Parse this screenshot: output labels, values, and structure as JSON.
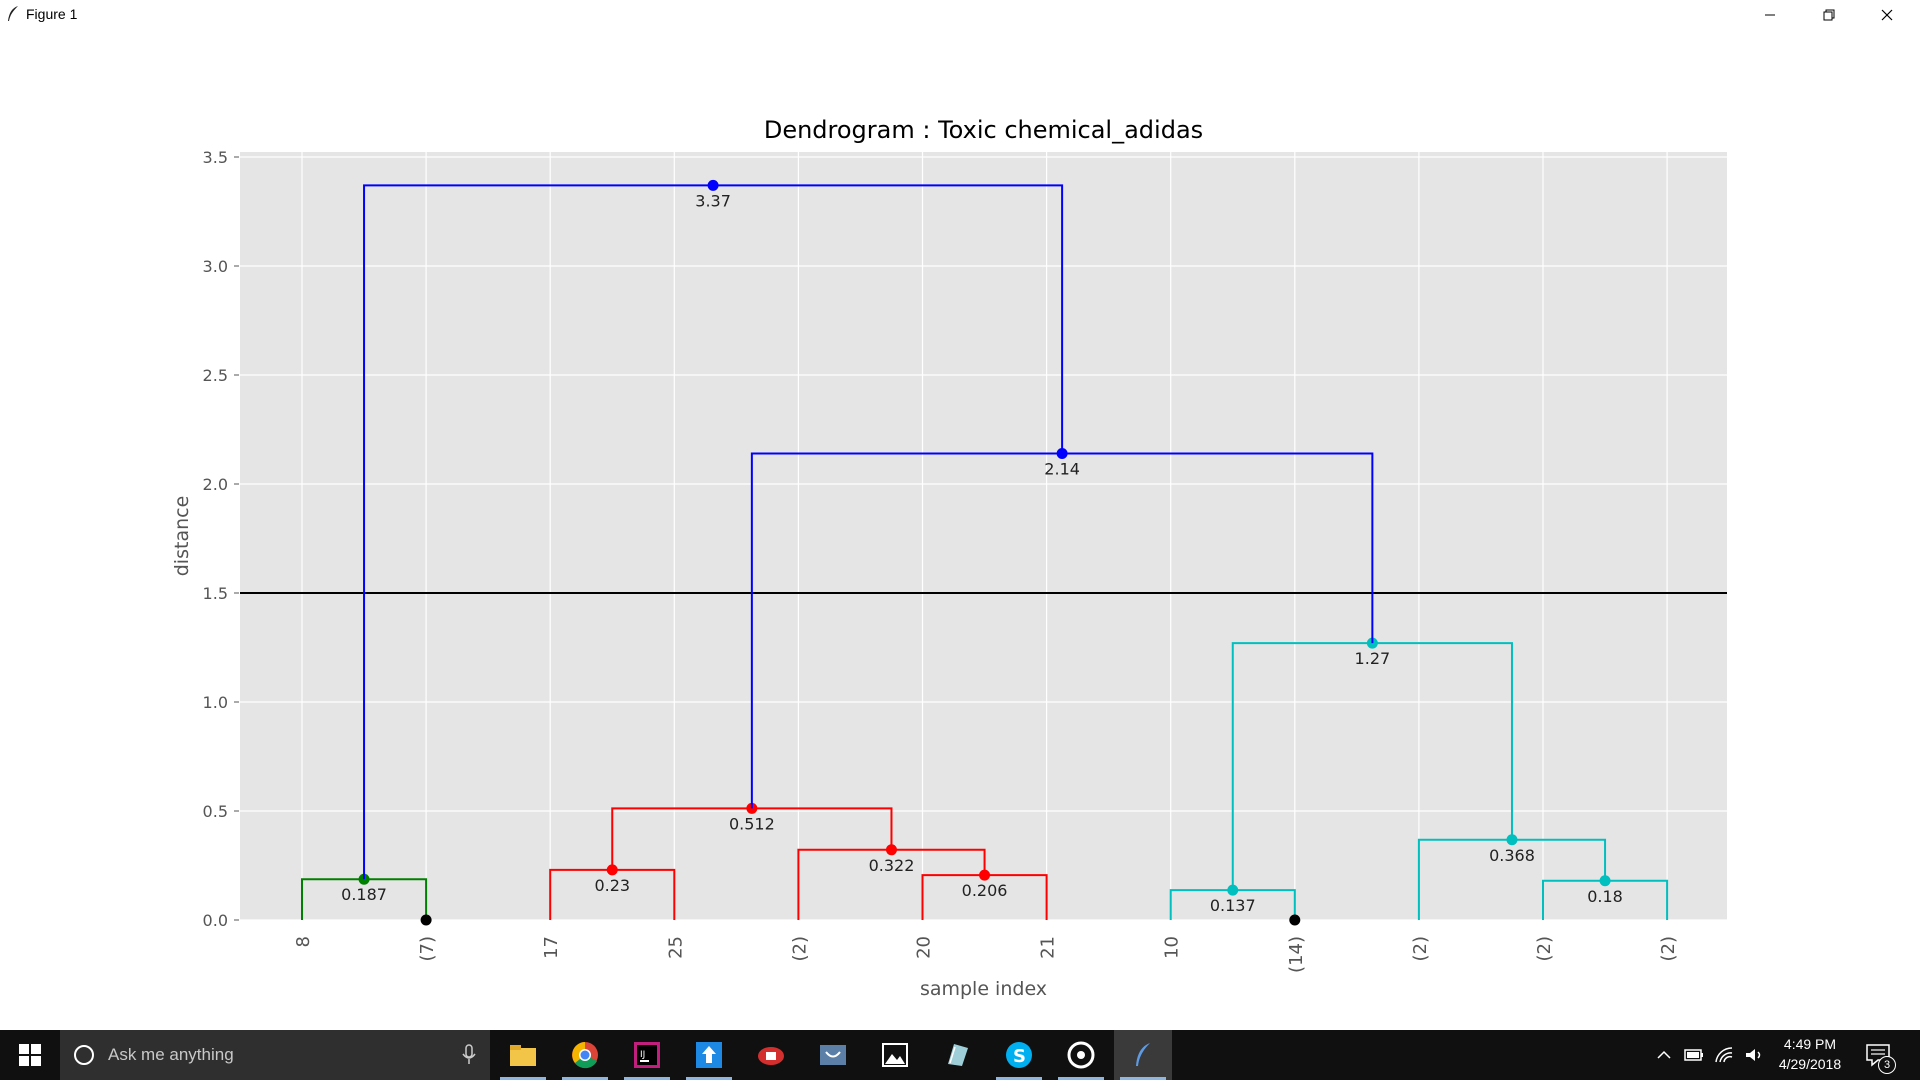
{
  "window": {
    "title": "Figure 1"
  },
  "chart_data": {
    "type": "dendrogram",
    "title": "Dendrogram : Toxic chemical_adidas",
    "xlabel": "sample index",
    "ylabel": "distance",
    "ylim": [
      0,
      3.5
    ],
    "yticks": [
      "0.0",
      "0.5",
      "1.0",
      "1.5",
      "2.0",
      "2.5",
      "3.0",
      "3.5"
    ],
    "ytick_values": [
      0,
      0.5,
      1.0,
      1.5,
      2.0,
      2.5,
      3.0,
      3.5
    ],
    "leaf_labels": [
      "8",
      "(7)",
      "17",
      "25",
      "(2)",
      "20",
      "21",
      "10",
      "(14)",
      "(2)",
      "(2)",
      "(2)"
    ],
    "cut_line": 1.5,
    "grid": true,
    "links": [
      {
        "left": 0,
        "right": 1,
        "left_h": 0,
        "right_h": 0,
        "height": 0.187,
        "color": "#008000",
        "label": "0.187"
      },
      {
        "left": 2,
        "right": 3,
        "left_h": 0,
        "right_h": 0,
        "height": 0.23,
        "color": "#ff0000",
        "label": "0.23"
      },
      {
        "left": 5,
        "right": 6,
        "left_h": 0,
        "right_h": 0,
        "height": 0.206,
        "color": "#ff0000",
        "label": "0.206"
      },
      {
        "left": 4,
        "right": 5.5,
        "left_h": 0,
        "right_h": 0.206,
        "height": 0.322,
        "color": "#ff0000",
        "label": "0.322"
      },
      {
        "left": 2.5,
        "right": 4.75,
        "left_h": 0.23,
        "right_h": 0.322,
        "height": 0.512,
        "color": "#ff0000",
        "label": "0.512"
      },
      {
        "left": 7,
        "right": 8,
        "left_h": 0,
        "right_h": 0,
        "height": 0.137,
        "color": "#00bfbf",
        "label": "0.137"
      },
      {
        "left": 10,
        "right": 11,
        "left_h": 0,
        "right_h": 0,
        "height": 0.18,
        "color": "#00bfbf",
        "label": "0.18"
      },
      {
        "left": 9,
        "right": 10.5,
        "left_h": 0,
        "right_h": 0.18,
        "height": 0.368,
        "color": "#00bfbf",
        "label": "0.368"
      },
      {
        "left": 7.5,
        "right": 9.75,
        "left_h": 0.137,
        "right_h": 0.368,
        "height": 1.27,
        "color": "#00bfbf",
        "label": "1.27"
      },
      {
        "left": 3.625,
        "right": 8.625,
        "left_h": 0.512,
        "right_h": 1.27,
        "height": 2.14,
        "color": "#0000ff",
        "label": "2.14"
      },
      {
        "left": 0.5,
        "right": 6.125,
        "left_h": 0.187,
        "right_h": 2.14,
        "height": 3.37,
        "color": "#0000ff",
        "label": "3.37"
      }
    ],
    "leaf_markers": [
      1,
      8
    ]
  },
  "taskbar": {
    "search_placeholder": "Ask me anything",
    "clock_time": "4:49 PM",
    "clock_date": "4/29/2018",
    "notification_count": "3",
    "apps": [
      "file-explorer",
      "chrome",
      "intellij",
      "upload-tool",
      "screen-recorder",
      "camera-app",
      "photos",
      "notes-app",
      "skype",
      "media-player",
      "python-figure"
    ]
  }
}
